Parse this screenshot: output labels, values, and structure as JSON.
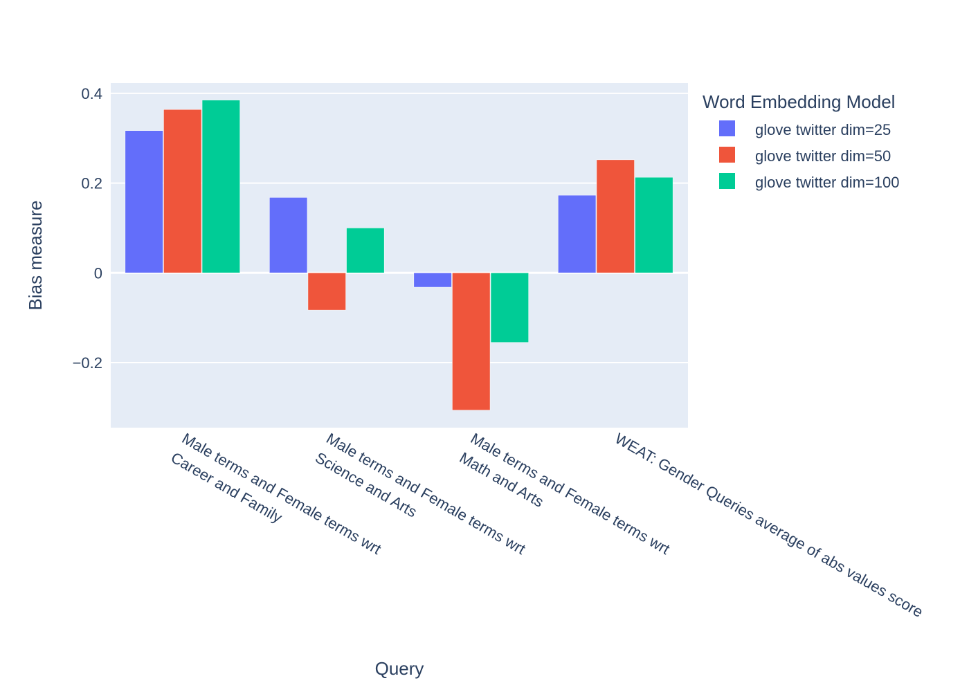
{
  "chart_data": {
    "type": "bar",
    "title": "",
    "xlabel": "Query",
    "ylabel": "Bias measure",
    "ylim": [
      -0.345,
      0.423
    ],
    "yticks": [
      0.4,
      0.2,
      0,
      -0.2
    ],
    "ytick_labels": [
      "0.4",
      "0.2",
      "0",
      "−0.2"
    ],
    "grid": true,
    "legend": {
      "title": "Word Embedding Model",
      "placement": "top-right"
    },
    "categories": [
      [
        "Male terms and Female terms wrt",
        "Career and Family"
      ],
      [
        "Male terms and Female terms wrt",
        "Science and Arts"
      ],
      [
        "Male terms and Female terms wrt",
        "Math and Arts"
      ],
      [
        "WEAT: Gender Queries average of abs values score"
      ]
    ],
    "series": [
      {
        "name": "glove twitter dim=25",
        "color": "#636efa",
        "values": [
          0.317,
          0.168,
          -0.032,
          0.173
        ]
      },
      {
        "name": "glove twitter dim=50",
        "color": "#ef553b",
        "values": [
          0.364,
          -0.083,
          -0.306,
          0.252
        ]
      },
      {
        "name": "glove twitter dim=100",
        "color": "#00cc96",
        "values": [
          0.385,
          0.1,
          -0.155,
          0.213
        ]
      }
    ]
  }
}
